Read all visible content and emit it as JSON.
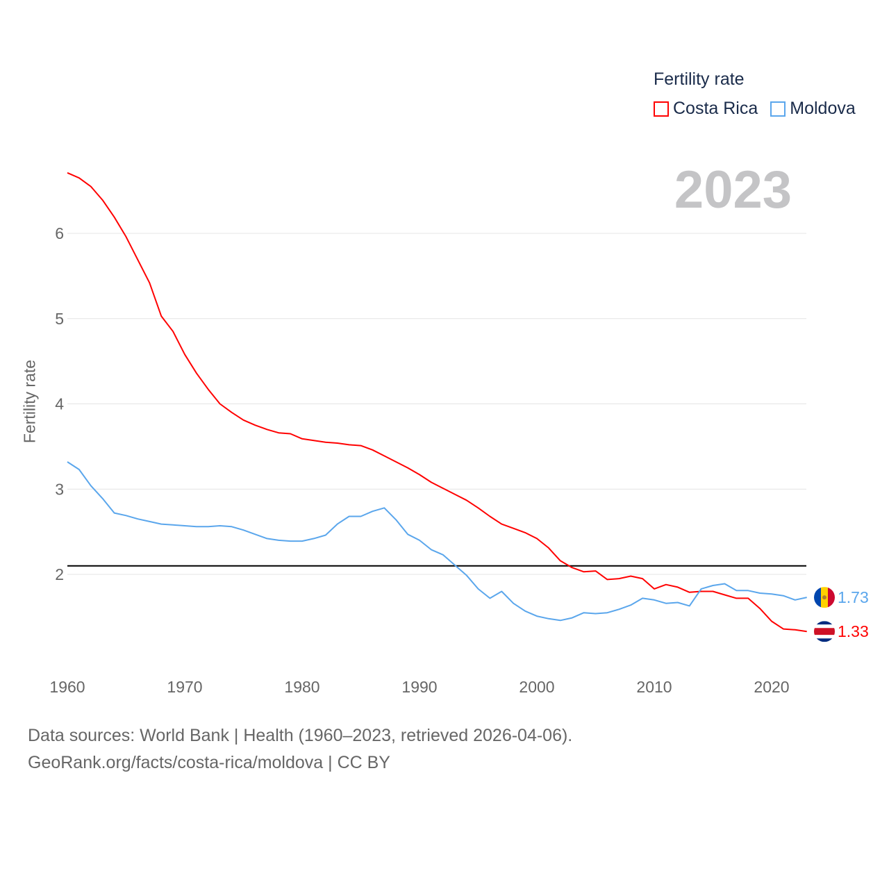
{
  "legend": {
    "title": "Fertility rate"
  },
  "year_label": "2023",
  "source_line1": "Data sources: World Bank | Health (1960–2023, retrieved 2026-04-06).",
  "source_line2": "GeoRank.org/facts/costa-rica/moldova | CC BY",
  "chart_data": {
    "type": "line",
    "title": "Fertility rate",
    "xlabel": "",
    "ylabel": "Fertility rate",
    "xlim": [
      1960,
      2023
    ],
    "ylim": [
      1,
      7
    ],
    "x_ticks": [
      "1960",
      "1970",
      "1980",
      "1990",
      "2000",
      "2010",
      "2020"
    ],
    "y_ticks": [
      "2",
      "3",
      "4",
      "5",
      "6"
    ],
    "grid": true,
    "legend_position": "top-right",
    "reference_line": {
      "y": 2.1,
      "color": "#000000"
    },
    "x": [
      1960,
      1961,
      1962,
      1963,
      1964,
      1965,
      1966,
      1967,
      1968,
      1969,
      1970,
      1971,
      1972,
      1973,
      1974,
      1975,
      1976,
      1977,
      1978,
      1979,
      1980,
      1981,
      1982,
      1983,
      1984,
      1985,
      1986,
      1987,
      1988,
      1989,
      1990,
      1991,
      1992,
      1993,
      1994,
      1995,
      1996,
      1997,
      1998,
      1999,
      2000,
      2001,
      2002,
      2003,
      2004,
      2005,
      2006,
      2007,
      2008,
      2009,
      2010,
      2011,
      2012,
      2013,
      2014,
      2015,
      2016,
      2017,
      2018,
      2019,
      2020,
      2021,
      2022,
      2023
    ],
    "series": [
      {
        "name": "Costa Rica",
        "color": "#ff0000",
        "end_label": "1.33",
        "values": [
          6.71,
          6.65,
          6.55,
          6.39,
          6.19,
          5.96,
          5.69,
          5.42,
          5.03,
          4.85,
          4.58,
          4.36,
          4.17,
          4.0,
          3.9,
          3.81,
          3.75,
          3.7,
          3.66,
          3.65,
          3.59,
          3.57,
          3.55,
          3.54,
          3.52,
          3.51,
          3.46,
          3.39,
          3.32,
          3.25,
          3.17,
          3.08,
          3.01,
          2.94,
          2.87,
          2.78,
          2.68,
          2.59,
          2.54,
          2.49,
          2.42,
          2.31,
          2.16,
          2.08,
          2.03,
          2.04,
          1.94,
          1.95,
          1.98,
          1.95,
          1.83,
          1.88,
          1.85,
          1.79,
          1.8,
          1.8,
          1.76,
          1.72,
          1.72,
          1.6,
          1.45,
          1.36,
          1.35,
          1.33
        ]
      },
      {
        "name": "Moldova",
        "color": "#5aa6ec",
        "end_label": "1.73",
        "values": [
          3.32,
          3.23,
          3.04,
          2.89,
          2.72,
          2.69,
          2.65,
          2.62,
          2.59,
          2.58,
          2.57,
          2.56,
          2.56,
          2.57,
          2.56,
          2.52,
          2.47,
          2.42,
          2.4,
          2.39,
          2.39,
          2.42,
          2.46,
          2.59,
          2.68,
          2.68,
          2.74,
          2.78,
          2.64,
          2.47,
          2.4,
          2.29,
          2.23,
          2.11,
          1.99,
          1.83,
          1.72,
          1.8,
          1.66,
          1.57,
          1.51,
          1.48,
          1.46,
          1.49,
          1.55,
          1.54,
          1.55,
          1.59,
          1.64,
          1.72,
          1.7,
          1.66,
          1.67,
          1.63,
          1.83,
          1.87,
          1.89,
          1.81,
          1.81,
          1.78,
          1.77,
          1.75,
          1.7,
          1.73
        ]
      }
    ]
  }
}
